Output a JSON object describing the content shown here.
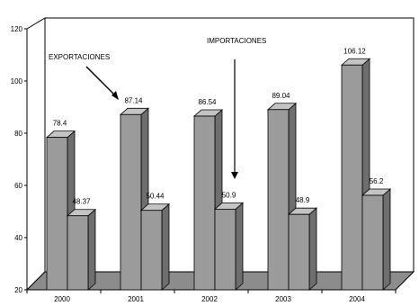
{
  "chart_data": {
    "type": "bar",
    "title": "",
    "xlabel": "",
    "ylabel": "",
    "categories": [
      "2000",
      "2001",
      "2002",
      "2003",
      "2004"
    ],
    "series": [
      {
        "name": "EXPORTACIONES",
        "values": [
          78.4,
          87.14,
          86.54,
          89.04,
          106.12
        ],
        "labels": [
          "78.4",
          "87.14",
          "86.54",
          "89.04",
          "106.12"
        ]
      },
      {
        "name": "IMPORTACIONES",
        "values": [
          48.37,
          50.44,
          50.9,
          48.9,
          56.2
        ],
        "labels": [
          "48.37",
          "50.44",
          "50.9",
          "48.9",
          "56.2"
        ]
      }
    ],
    "ylim": [
      20,
      120
    ],
    "yticks": [
      20,
      40,
      60,
      80,
      100,
      120
    ],
    "grid": false,
    "style": "3d-bars",
    "colors": {
      "front": "#9b9b9b",
      "side": "#6e6e6e",
      "top": "#c4c4c4",
      "floor": "#8c8c8c",
      "wall": "#ffffff"
    }
  },
  "annotations": {
    "export_label": "EXPORTACIONES",
    "import_label": "IMPORTACIONES"
  }
}
